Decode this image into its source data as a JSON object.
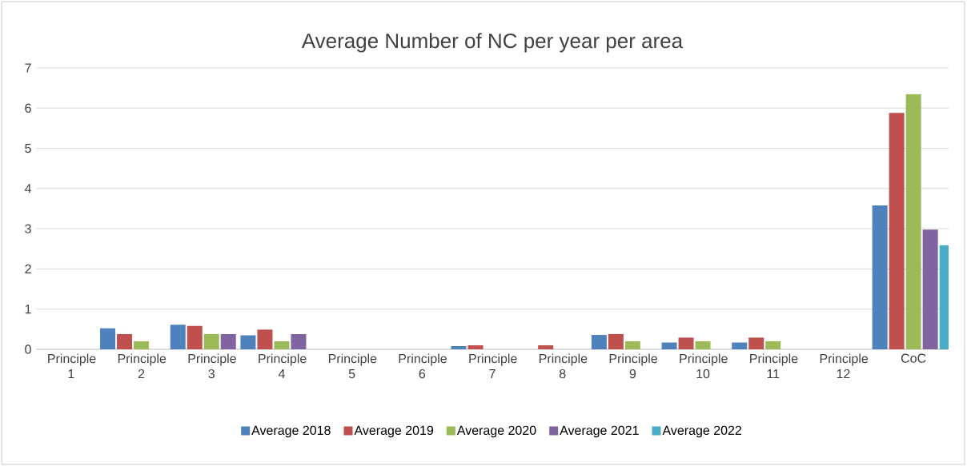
{
  "chart_data": {
    "type": "bar",
    "title": "Average Number of NC per year per area",
    "categories": [
      "Principle 1",
      "Principle 2",
      "Principle 3",
      "Principle 4",
      "Principle 5",
      "Principle 6",
      "Principle 7",
      "Principle 8",
      "Principle 9",
      "Principle 10",
      "Principle 11",
      "Principle 12",
      "CoC"
    ],
    "series": [
      {
        "name": "Average 2018",
        "color": "#4f81bd",
        "values": [
          0,
          0.52,
          0.61,
          0.35,
          0,
          0,
          0.08,
          0,
          0.36,
          0.17,
          0.17,
          0,
          3.58
        ]
      },
      {
        "name": "Average 2019",
        "color": "#c0504d",
        "values": [
          0,
          0.38,
          0.58,
          0.49,
          0,
          0,
          0.1,
          0.1,
          0.38,
          0.29,
          0.29,
          0,
          5.88
        ]
      },
      {
        "name": "Average 2020",
        "color": "#9bbb59",
        "values": [
          0,
          0.2,
          0.38,
          0.2,
          0,
          0,
          0,
          0,
          0.2,
          0.2,
          0.2,
          0,
          6.35
        ]
      },
      {
        "name": "Average 2021",
        "color": "#8064a2",
        "values": [
          0,
          0,
          0.38,
          0.38,
          0,
          0,
          0,
          0,
          0,
          0,
          0,
          0,
          2.98
        ]
      },
      {
        "name": "Average 2022",
        "color": "#4bacc6",
        "values": [
          0,
          0,
          0,
          0,
          0,
          0,
          0,
          0,
          0,
          0,
          0,
          0,
          2.59
        ]
      }
    ],
    "ylim": [
      0,
      7
    ],
    "yticks": [
      0,
      1,
      2,
      3,
      4,
      5,
      6,
      7
    ],
    "grid": "y",
    "legend": "bottom"
  }
}
